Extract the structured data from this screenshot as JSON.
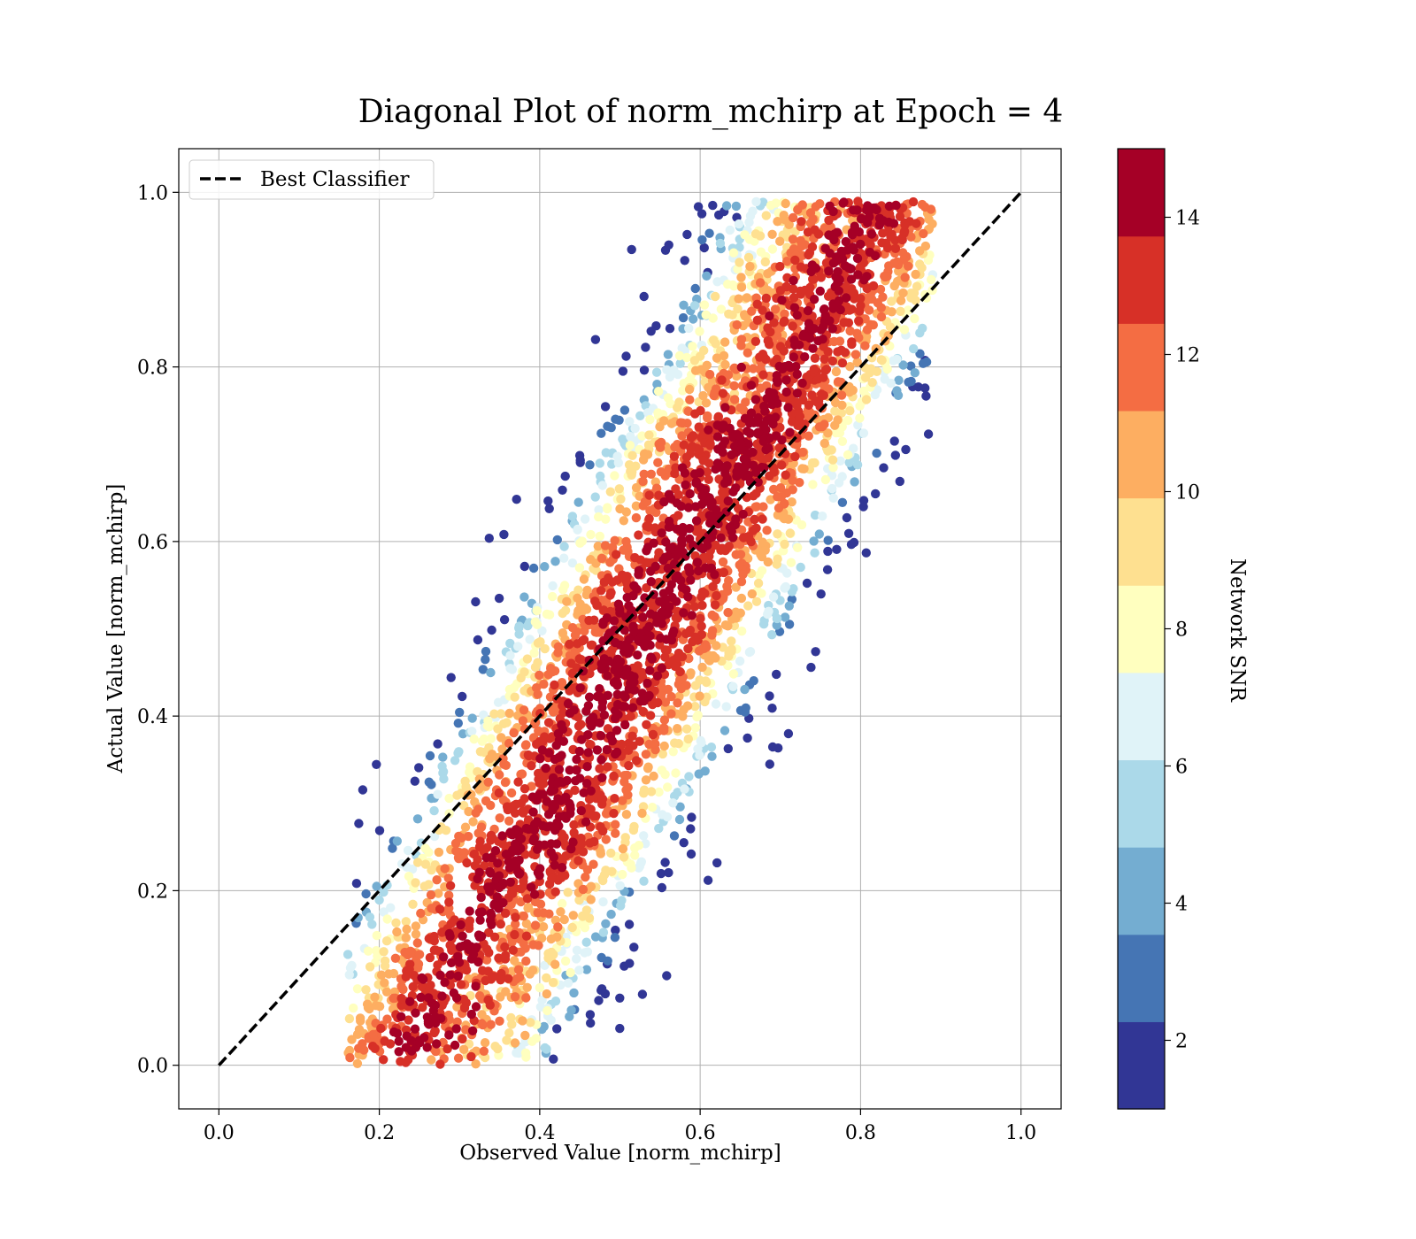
{
  "chart_data": {
    "type": "scatter",
    "title": "Diagonal Plot of norm_mchirp at Epoch = 4",
    "xlabel": "Observed Value [norm_mchirp]",
    "ylabel": "Actual Value [norm_mchirp]",
    "xlim": [
      -0.05,
      1.05
    ],
    "ylim": [
      -0.05,
      1.05
    ],
    "xticks": [
      "0.0",
      "0.2",
      "0.4",
      "0.6",
      "0.8",
      "1.0"
    ],
    "yticks": [
      "0.0",
      "0.2",
      "0.4",
      "0.6",
      "0.8",
      "1.0"
    ],
    "grid": true,
    "legend": {
      "position": "top-left",
      "entries": [
        "Best Classifier"
      ]
    },
    "reference_line": {
      "name": "Best Classifier",
      "x": [
        0,
        1
      ],
      "y": [
        0,
        1
      ],
      "style": "dashed",
      "color": "#000000"
    },
    "colorbar": {
      "label": "Network SNR",
      "range": [
        1,
        15
      ],
      "ticks": [
        "2",
        "4",
        "6",
        "8",
        "10",
        "12",
        "14"
      ],
      "bands": [
        "#313695",
        "#4575b4",
        "#74add1",
        "#abd9e9",
        "#e0f3f8",
        "#ffffbf",
        "#fee090",
        "#fdae61",
        "#f46d43",
        "#d73027",
        "#a50026"
      ],
      "colormap": "RdYlBu_r"
    },
    "scatter_summary": {
      "description_points": "dense cloud along the diagonal from (0.17,0.0) to (0.88,0.99); high SNR points near diagonal, low SNR points at extremes",
      "x_range": [
        0.16,
        0.89
      ],
      "y_range": [
        0.0,
        0.99
      ]
    }
  }
}
